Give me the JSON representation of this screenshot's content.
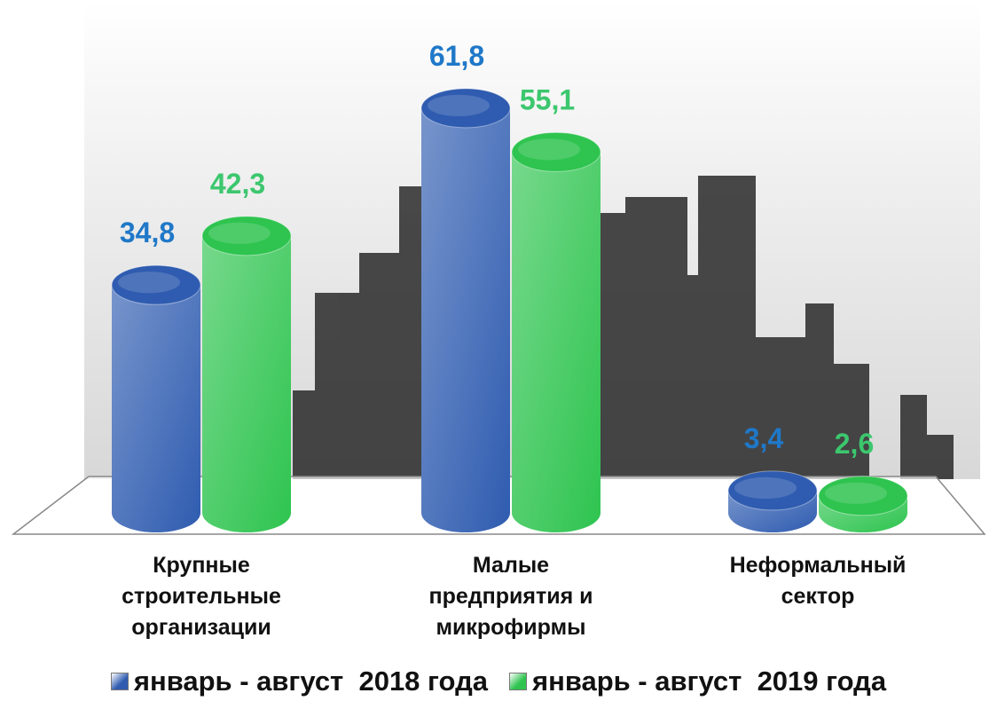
{
  "chart_data": {
    "type": "bar3d-cylinder",
    "categories": [
      "Крупные\nстроительные\nорганизации",
      "Малые\nпредприятия и\nмикрофирмы",
      "Неформальный\nсектор"
    ],
    "series": [
      {
        "name": "январь - август  2018 года",
        "color": "#2f5cb0",
        "label_color": "#1f78c8",
        "values": [
          34.8,
          61.8,
          3.4
        ],
        "value_labels": [
          "34,8",
          "61,8",
          "3,4"
        ]
      },
      {
        "name": "январь - август  2019 года",
        "color": "#2ec44f",
        "label_color": "#3cc76e",
        "values": [
          42.3,
          55.1,
          2.6
        ],
        "value_labels": [
          "42,3",
          "55,1",
          "2,6"
        ]
      }
    ]
  }
}
